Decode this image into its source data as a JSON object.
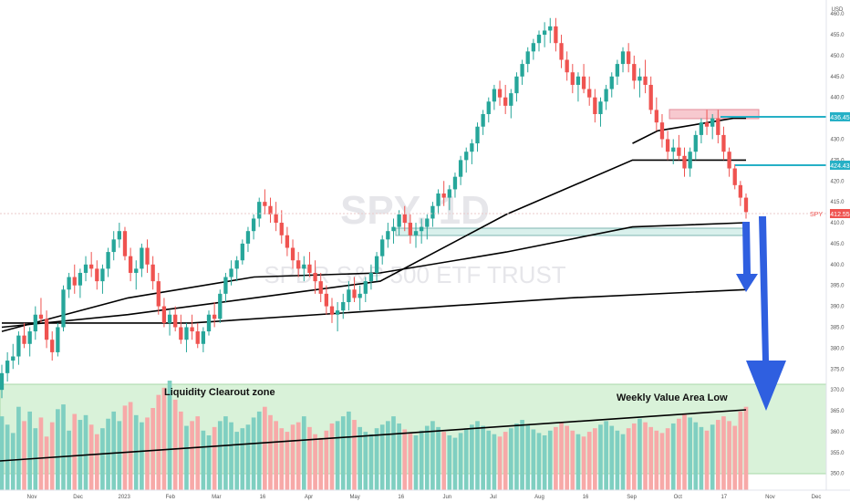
{
  "chart_data": {
    "type": "candlestick",
    "watermark": {
      "symbol": "SPY, 1D",
      "name": "SPDR S&P 500 ETF TRUST"
    },
    "currency": "USD",
    "x_axis": {
      "ticks": [
        "Nov",
        "Dec",
        "2023",
        "Feb",
        "Mar",
        "16",
        "Apr",
        "May",
        "16",
        "Jun",
        "Jul",
        "Aug",
        "16",
        "Sep",
        "Oct",
        "17",
        "Nov",
        "Dec"
      ]
    },
    "y_axis": {
      "ylim": [
        346,
        462
      ],
      "ticks": [
        350,
        355,
        360,
        365,
        370,
        375,
        380,
        385,
        390,
        395,
        400,
        405,
        410,
        415,
        420,
        425,
        430,
        435,
        440,
        445,
        450,
        455,
        460
      ]
    },
    "price_tags": [
      {
        "label": "436.45",
        "value": 436.45,
        "color": "#26b0c6"
      },
      {
        "label": "424.43",
        "value": 424.43,
        "color": "#26b0c6"
      },
      {
        "label": "SPY",
        "value": 412.55,
        "text": "412.55",
        "color": "#ef5350"
      }
    ],
    "candles": [
      [
        370,
        376,
        368,
        374
      ],
      [
        374,
        379,
        372,
        377
      ],
      [
        377,
        381,
        375,
        378
      ],
      [
        378,
        384,
        376,
        383
      ],
      [
        383,
        386,
        380,
        381
      ],
      [
        381,
        385,
        378,
        384
      ],
      [
        384,
        390,
        382,
        388
      ],
      [
        388,
        392,
        386,
        387
      ],
      [
        387,
        389,
        380,
        382
      ],
      [
        382,
        384,
        377,
        379
      ],
      [
        379,
        386,
        378,
        385
      ],
      [
        385,
        395,
        384,
        394
      ],
      [
        394,
        398,
        392,
        397
      ],
      [
        397,
        400,
        393,
        395
      ],
      [
        395,
        399,
        392,
        398
      ],
      [
        398,
        402,
        396,
        400
      ],
      [
        400,
        403,
        397,
        399
      ],
      [
        399,
        401,
        394,
        396
      ],
      [
        396,
        400,
        393,
        399
      ],
      [
        399,
        404,
        397,
        403
      ],
      [
        403,
        408,
        401,
        406
      ],
      [
        406,
        410,
        404,
        408
      ],
      [
        408,
        409,
        401,
        402
      ],
      [
        402,
        404,
        396,
        398
      ],
      [
        398,
        401,
        394,
        399
      ],
      [
        399,
        405,
        397,
        404
      ],
      [
        404,
        406,
        398,
        400
      ],
      [
        400,
        402,
        394,
        396
      ],
      [
        396,
        398,
        388,
        390
      ],
      [
        390,
        392,
        385,
        386
      ],
      [
        386,
        389,
        383,
        388
      ],
      [
        388,
        390,
        384,
        385
      ],
      [
        385,
        388,
        381,
        382
      ],
      [
        382,
        386,
        379,
        385
      ],
      [
        385,
        388,
        382,
        384
      ],
      [
        384,
        386,
        380,
        381
      ],
      [
        381,
        385,
        379,
        384
      ],
      [
        384,
        389,
        383,
        388
      ],
      [
        388,
        391,
        385,
        387
      ],
      [
        387,
        394,
        386,
        393
      ],
      [
        393,
        398,
        391,
        397
      ],
      [
        397,
        401,
        395,
        399
      ],
      [
        399,
        402,
        396,
        401
      ],
      [
        401,
        406,
        400,
        405
      ],
      [
        405,
        409,
        403,
        408
      ],
      [
        408,
        412,
        406,
        411
      ],
      [
        411,
        416,
        409,
        415
      ],
      [
        415,
        418,
        412,
        414
      ],
      [
        414,
        416,
        410,
        412
      ],
      [
        412,
        415,
        408,
        410
      ],
      [
        410,
        413,
        405,
        407
      ],
      [
        407,
        409,
        402,
        404
      ],
      [
        404,
        406,
        399,
        401
      ],
      [
        401,
        403,
        397,
        399
      ],
      [
        399,
        402,
        396,
        400
      ],
      [
        400,
        403,
        397,
        398
      ],
      [
        398,
        401,
        393,
        396
      ],
      [
        396,
        398,
        391,
        393
      ],
      [
        393,
        395,
        388,
        390
      ],
      [
        390,
        392,
        386,
        388
      ],
      [
        388,
        391,
        384,
        389
      ],
      [
        389,
        393,
        387,
        391
      ],
      [
        391,
        396,
        389,
        394
      ],
      [
        394,
        397,
        391,
        392
      ],
      [
        392,
        395,
        389,
        393
      ],
      [
        393,
        397,
        391,
        396
      ],
      [
        396,
        400,
        394,
        398
      ],
      [
        398,
        403,
        396,
        402
      ],
      [
        402,
        407,
        400,
        406
      ],
      [
        406,
        410,
        404,
        408
      ],
      [
        408,
        411,
        405,
        409
      ],
      [
        409,
        413,
        407,
        412
      ],
      [
        412,
        414,
        408,
        410
      ],
      [
        410,
        412,
        405,
        407
      ],
      [
        407,
        410,
        404,
        408
      ],
      [
        408,
        411,
        405,
        409
      ],
      [
        409,
        412,
        406,
        411
      ],
      [
        411,
        415,
        409,
        414
      ],
      [
        414,
        418,
        412,
        417
      ],
      [
        417,
        420,
        414,
        416
      ],
      [
        416,
        419,
        413,
        418
      ],
      [
        418,
        422,
        416,
        421
      ],
      [
        421,
        426,
        419,
        425
      ],
      [
        425,
        428,
        422,
        427
      ],
      [
        427,
        430,
        424,
        429
      ],
      [
        429,
        434,
        427,
        433
      ],
      [
        433,
        437,
        431,
        436
      ],
      [
        436,
        440,
        434,
        439
      ],
      [
        439,
        443,
        437,
        442
      ],
      [
        442,
        444,
        438,
        440
      ],
      [
        440,
        443,
        436,
        438
      ],
      [
        438,
        442,
        435,
        441
      ],
      [
        441,
        446,
        439,
        445
      ],
      [
        445,
        449,
        443,
        448
      ],
      [
        448,
        452,
        446,
        451
      ],
      [
        451,
        454,
        449,
        453
      ],
      [
        453,
        456,
        451,
        455
      ],
      [
        455,
        458,
        452,
        456
      ],
      [
        456,
        459,
        453,
        457
      ],
      [
        457,
        459,
        451,
        453
      ],
      [
        453,
        455,
        447,
        449
      ],
      [
        449,
        451,
        444,
        446
      ],
      [
        446,
        448,
        441,
        443
      ],
      [
        443,
        446,
        439,
        445
      ],
      [
        445,
        448,
        441,
        442
      ],
      [
        442,
        445,
        438,
        440
      ],
      [
        440,
        442,
        434,
        436
      ],
      [
        436,
        440,
        433,
        439
      ],
      [
        439,
        443,
        437,
        442
      ],
      [
        442,
        446,
        440,
        445
      ],
      [
        445,
        449,
        443,
        448
      ],
      [
        448,
        452,
        446,
        451
      ],
      [
        451,
        453,
        446,
        448
      ],
      [
        448,
        450,
        442,
        444
      ],
      [
        444,
        447,
        440,
        445
      ],
      [
        445,
        449,
        441,
        443
      ],
      [
        443,
        445,
        436,
        437
      ],
      [
        437,
        440,
        432,
        434
      ],
      [
        434,
        436,
        428,
        430
      ],
      [
        430,
        432,
        425,
        427
      ],
      [
        427,
        430,
        424,
        428
      ],
      [
        428,
        431,
        425,
        426
      ],
      [
        426,
        428,
        421,
        423
      ],
      [
        423,
        428,
        421,
        427
      ],
      [
        427,
        432,
        425,
        431
      ],
      [
        431,
        435,
        429,
        434
      ],
      [
        434,
        437,
        431,
        433
      ],
      [
        433,
        436,
        430,
        435
      ],
      [
        435,
        437,
        429,
        431
      ],
      [
        431,
        433,
        425,
        427
      ],
      [
        427,
        428,
        421,
        423
      ],
      [
        423,
        424,
        418,
        419
      ],
      [
        419,
        420,
        414,
        416
      ],
      [
        416,
        417,
        411,
        412.55
      ]
    ],
    "lines": [
      {
        "name": "ma-fast",
        "points": [
          [
            100,
            429
          ],
          [
            104,
            432
          ],
          [
            108,
            433
          ],
          [
            112,
            434
          ],
          [
            116,
            435
          ],
          [
            118,
            435
          ]
        ]
      },
      {
        "name": "ma-short",
        "points": [
          [
            0,
            384
          ],
          [
            20,
            392
          ],
          [
            40,
            397
          ],
          [
            60,
            398
          ],
          [
            80,
            403
          ],
          [
            100,
            409
          ],
          [
            118,
            410
          ]
        ]
      },
      {
        "name": "ma-mid",
        "points": [
          [
            0,
            385
          ],
          [
            20,
            388
          ],
          [
            40,
            392
          ],
          [
            60,
            396
          ],
          [
            80,
            412
          ],
          [
            100,
            425
          ],
          [
            118,
            425
          ]
        ]
      },
      {
        "name": "ma-long",
        "points": [
          [
            0,
            386
          ],
          [
            30,
            386
          ],
          [
            60,
            389
          ],
          [
            90,
            392
          ],
          [
            118,
            394
          ]
        ]
      }
    ],
    "volume": {
      "values": [
        62,
        55,
        48,
        70,
        58,
        66,
        52,
        61,
        45,
        57,
        68,
        72,
        50,
        64,
        59,
        63,
        55,
        47,
        52,
        60,
        66,
        58,
        71,
        74,
        63,
        57,
        61,
        69,
        80,
        86,
        92,
        76,
        66,
        54,
        58,
        62,
        50,
        46,
        53,
        58,
        62,
        57,
        49,
        52,
        55,
        61,
        66,
        70,
        63,
        58,
        52,
        49,
        55,
        57,
        62,
        53,
        47,
        44,
        50,
        56,
        58,
        62,
        66,
        59,
        53,
        49,
        47,
        52,
        55,
        58,
        62,
        56,
        51,
        48,
        46,
        50,
        54,
        58,
        53,
        49,
        46,
        44,
        48,
        51,
        55,
        58,
        54,
        50,
        47,
        45,
        49,
        52,
        56,
        59,
        55,
        51,
        48,
        46,
        50,
        53,
        57,
        54,
        50,
        47,
        45,
        49,
        52,
        55,
        58,
        54,
        50,
        47,
        52,
        56,
        60,
        57,
        53,
        50,
        48,
        52,
        56,
        60,
        64,
        61,
        57,
        53,
        50,
        55,
        59,
        62,
        58,
        54,
        66,
        70
      ],
      "down_color": "#f7a9a8",
      "up_color": "#7fcfc1"
    },
    "zones": [
      {
        "name": "liquidity-clearout-zone",
        "label": "Liquidity Clearout zone",
        "color": "#d9f2d9"
      },
      {
        "name": "supply-zone",
        "color": "#f7c9cf"
      },
      {
        "name": "gap-zone",
        "color": "#d9f0ec"
      }
    ],
    "annotations": [
      {
        "text": "Weekly Value Area Low"
      }
    ]
  }
}
